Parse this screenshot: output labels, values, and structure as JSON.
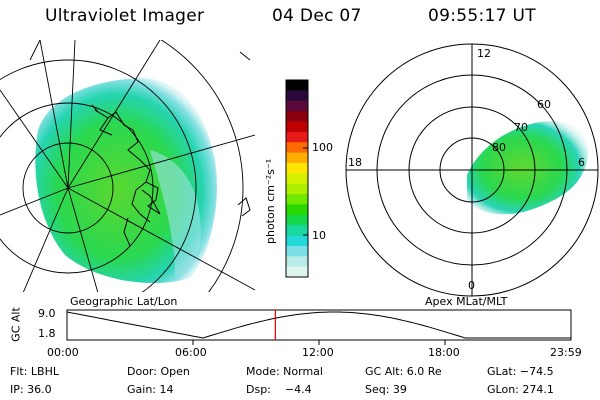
{
  "header": {
    "instrument": "Ultraviolet Imager",
    "date": "04 Dec 07",
    "time": "09:55:17 UT"
  },
  "colorbar": {
    "unit_label": "photon cm⁻²s⁻¹",
    "ticks": [
      {
        "label": "100",
        "value": 100
      },
      {
        "label": "10",
        "value": 10
      }
    ],
    "colors": [
      "#000000",
      "#2a0a3a",
      "#5a0a3a",
      "#8a0010",
      "#c00000",
      "#e81b1b",
      "#ff6a00",
      "#ffae00",
      "#ffe600",
      "#d6f000",
      "#aaf000",
      "#70e800",
      "#2ad800",
      "#14d84a",
      "#18d8a0",
      "#22d8d8",
      "#7ae0e6",
      "#b8ece8",
      "#dff3ef"
    ]
  },
  "left_map": {
    "caption": "Geographic Lat/Lon"
  },
  "right_polar": {
    "caption": "Apex MLat/MLT",
    "mlt_labels": [
      "12",
      "18",
      "6",
      "0"
    ],
    "lat_labels": [
      "60",
      "70",
      "80"
    ]
  },
  "timeline": {
    "axis_label": "GC Alt",
    "y_ticks": [
      "9.0",
      "1.8"
    ],
    "x_ticks": [
      "00:00",
      "06:00",
      "12:00",
      "18:00",
      "23:59"
    ],
    "marker_time": "09:55:17",
    "marker_fraction": 0.4134,
    "line_color": "#000000",
    "marker_color": "#e00000"
  },
  "status": {
    "rows": [
      [
        {
          "name": "filter",
          "text": "Flt: LBHL"
        },
        {
          "name": "door",
          "text": "Door: Open"
        },
        {
          "name": "mode",
          "text": "Mode: Normal"
        },
        {
          "name": "gc-alt",
          "text": "GC Alt: 6.0 Re"
        },
        {
          "name": "glat",
          "text": "GLat: −74.5"
        }
      ],
      [
        {
          "name": "ip",
          "text": "IP: 36.0"
        },
        {
          "name": "gain",
          "text": "Gain: 14"
        },
        {
          "name": "dsp",
          "text": "Dsp:    −4.4"
        },
        {
          "name": "seq",
          "text": "Seq: 39"
        },
        {
          "name": "glon",
          "text": "GLon: 274.1"
        }
      ]
    ]
  }
}
